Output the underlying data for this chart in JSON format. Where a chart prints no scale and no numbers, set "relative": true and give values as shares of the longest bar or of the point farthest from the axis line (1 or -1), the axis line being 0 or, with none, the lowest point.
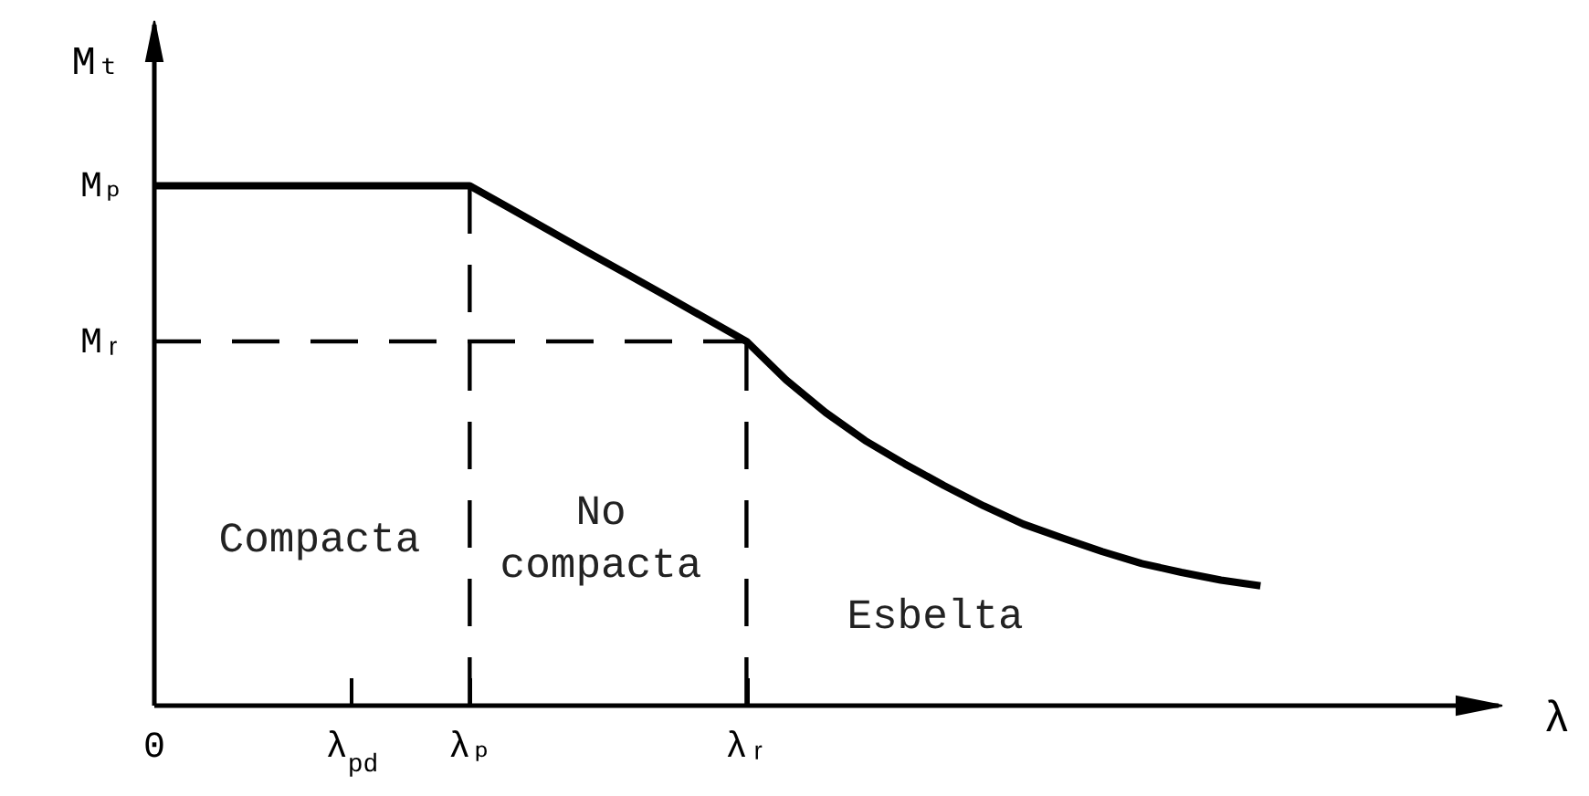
{
  "chart_data": {
    "type": "line",
    "relative": true,
    "xlabel": "λ",
    "ylabel": "Mₜ",
    "categories": [
      "0",
      null,
      null,
      null,
      null,
      "λ$_{pd}$",
      null,
      null,
      "λₚ",
      null,
      null,
      null,
      null,
      null,
      null,
      "λᵣ",
      null,
      null,
      null,
      null,
      null,
      null,
      null,
      null,
      null,
      null,
      null,
      null,
      null,
      null,
      null,
      null,
      null,
      null,
      null
    ],
    "series": [
      {
        "color": "#000000",
        "line_style": "solid",
        "values": [
          1,
          1,
          1,
          1,
          1,
          1,
          1,
          1,
          1,
          0.957,
          0.914,
          0.871,
          0.829,
          0.786,
          0.743,
          0.7,
          0.626,
          0.563,
          0.509,
          0.464,
          0.422,
          0.383,
          0.348,
          0.321,
          0.295,
          0.272,
          0.255,
          0.24,
          0.229,
          null,
          null,
          null,
          null,
          null,
          null
        ]
      },
      {
        "color": "#000000",
        "line_style": "dashed",
        "values": [
          0.7,
          0.7,
          0.7,
          0.7,
          0.7,
          0.7,
          0.7,
          0.7,
          0.7,
          0.7,
          0.7,
          0.7,
          0.7,
          0.7,
          0.7,
          0.7,
          null,
          null,
          null,
          null,
          null,
          null,
          null,
          null,
          null,
          null,
          null,
          null,
          null,
          null,
          null,
          null,
          null,
          null,
          null
        ]
      }
    ],
    "ref_lines": [
      {
        "axis": "x",
        "value": "λₚ",
        "color": "#000000",
        "line_style": "dashed"
      },
      {
        "axis": "x",
        "value": "λᵣ",
        "color": "#000000",
        "line_style": "dashed"
      }
    ],
    "annotations": [
      {
        "text": "Mₚ",
        "x": "0",
        "y": 1
      },
      {
        "text": "Mᵣ",
        "x": "0",
        "y": 0.7
      },
      "Compacta",
      "No\ncompacta",
      "Esbelta"
    ]
  }
}
